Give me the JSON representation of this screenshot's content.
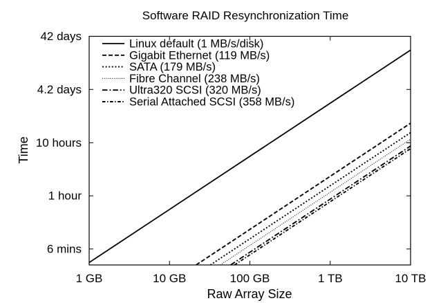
{
  "colors": {
    "foreground": "#000000",
    "background": "#ffffff"
  },
  "chart_data": {
    "type": "line",
    "title": "Software RAID Resynchronization Time",
    "xlabel": "Raw Array Size",
    "ylabel": "Time",
    "x_scale": "log",
    "y_scale": "log",
    "grid": false,
    "legend_position": "top-left-inside",
    "x_range_GB": [
      1,
      10000
    ],
    "y_range_seconds": [
      180,
      3628800
    ],
    "x_ticks": [
      {
        "label": "1 GB",
        "GB": 1
      },
      {
        "label": "10 GB",
        "GB": 10
      },
      {
        "label": "100 GB",
        "GB": 100
      },
      {
        "label": "1 TB",
        "GB": 1000
      },
      {
        "label": "10 TB",
        "GB": 10000
      }
    ],
    "y_ticks": [
      {
        "label": "6 mins",
        "seconds": 360
      },
      {
        "label": "1 hour",
        "seconds": 3600
      },
      {
        "label": "10 hours",
        "seconds": 36000
      },
      {
        "label": "4.2 days",
        "seconds": 362880
      },
      {
        "label": "42 days",
        "seconds": 3628800
      }
    ],
    "series": [
      {
        "name": "linux-default",
        "label": "Linux default (1 MB/s/disk)",
        "speed_MB_s": 1,
        "line_speed_MB_s": 5,
        "dash": "solid"
      },
      {
        "name": "gigabit-ethernet",
        "label": "Gigabit Ethernet (119 MB/s)",
        "speed_MB_s": 119,
        "line_speed_MB_s": 119,
        "dash": "dashed"
      },
      {
        "name": "sata",
        "label": "SATA (179 MB/s)",
        "speed_MB_s": 179,
        "line_speed_MB_s": 179,
        "dash": "dotted"
      },
      {
        "name": "fibre-channel",
        "label": "Fibre Channel (238 MB/s)",
        "speed_MB_s": 238,
        "line_speed_MB_s": 238,
        "dash": "fine-dotted"
      },
      {
        "name": "ultra320-scsi",
        "label": "Ultra320 SCSI (320 MB/s)",
        "speed_MB_s": 320,
        "line_speed_MB_s": 320,
        "dash": "dash-dot"
      },
      {
        "name": "serial-attached-scsi",
        "label": "Serial Attached SCSI (358 MB/s)",
        "speed_MB_s": 358,
        "line_speed_MB_s": 358,
        "dash": "dash-dot-short"
      }
    ]
  }
}
